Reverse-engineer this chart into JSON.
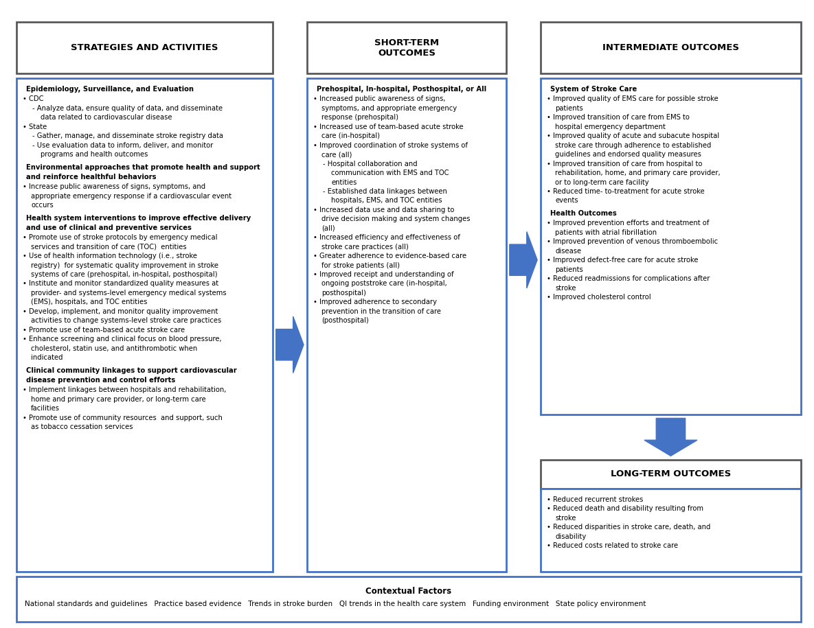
{
  "background_color": "#ffffff",
  "border_color_blue": "#4472c4",
  "border_color_dark": "#595959",
  "arrow_color": "#4472c4",
  "col1_header": "STRATEGIES AND ACTIVITIES",
  "col2_header": "SHORT-TERM\nOUTCOMES",
  "col3_header": "INTERMEDIATE OUTCOMES",
  "longterm_header": "LONG-TERM OUTCOMES",
  "contextual_header": "Contextual Factors",
  "contextual_items": "National standards and guidelines   Practice based evidence   Trends in stroke burden   QI trends in the health care system   Funding environment   State policy environment",
  "col1_sections": [
    {
      "heading": "Epidemiology, Surveillance, and Evaluation",
      "lines": [
        {
          "type": "bullet1",
          "text": "CDC"
        },
        {
          "type": "bullet2",
          "text": "Analyze data, ensure quality of data, and disseminate"
        },
        {
          "type": "cont2",
          "text": "data related to cardiovascular disease"
        },
        {
          "type": "bullet1",
          "text": "State"
        },
        {
          "type": "bullet2",
          "text": "Gather, manage, and disseminate stroke registry data"
        },
        {
          "type": "bullet2",
          "text": "Use evaluation data to inform, deliver, and monitor"
        },
        {
          "type": "cont2",
          "text": "programs and health outcomes"
        }
      ]
    },
    {
      "heading": "Environmental approaches that promote health and support\nand reinforce healthful behaviors",
      "lines": [
        {
          "type": "bullet1",
          "text": "Increase public awareness of signs, symptoms, and"
        },
        {
          "type": "cont1",
          "text": "appropriate emergency response if a cardiovascular event"
        },
        {
          "type": "cont1",
          "text": "occurs"
        }
      ]
    },
    {
      "heading": "Health system interventions to improve effective delivery\nand use of clinical and preventive services",
      "lines": [
        {
          "type": "bullet1",
          "text": "Promote use of stroke protocols by emergency medical"
        },
        {
          "type": "cont1",
          "text": "services and transition of care (TOC)  entities"
        },
        {
          "type": "bullet1",
          "text": "Use of health information technology (i.e., stroke"
        },
        {
          "type": "cont1",
          "text": "registry)  for systematic quality improvement in stroke"
        },
        {
          "type": "cont1",
          "text": "systems of care (prehospital, in-hospital, posthospital)"
        },
        {
          "type": "bullet1",
          "text": "Institute and monitor standardized quality measures at"
        },
        {
          "type": "cont1",
          "text": "provider- and systems-level emergency medical systems"
        },
        {
          "type": "cont1",
          "text": "(EMS), hospitals, and TOC entities"
        },
        {
          "type": "bullet1",
          "text": "Develop, implement, and monitor quality improvement"
        },
        {
          "type": "cont1",
          "text": "activities to change systems-level stroke care practices"
        },
        {
          "type": "bullet1",
          "text": "Promote use of team-based acute stroke care"
        },
        {
          "type": "bullet1",
          "text": "Enhance screening and clinical focus on blood pressure,"
        },
        {
          "type": "cont1",
          "text": "cholesterol, statin use, and antithrombotic when"
        },
        {
          "type": "cont1",
          "text": "indicated"
        }
      ]
    },
    {
      "heading": "Clinical community linkages to support cardiovascular\ndisease prevention and control efforts",
      "lines": [
        {
          "type": "bullet1",
          "text": "Implement linkages between hospitals and rehabilitation,"
        },
        {
          "type": "cont1",
          "text": "home and primary care provider, or long-term care"
        },
        {
          "type": "cont1",
          "text": "facilities"
        },
        {
          "type": "bullet1",
          "text": "Promote use of community resources  and support, such"
        },
        {
          "type": "cont1",
          "text": "as tobacco cessation services"
        }
      ]
    }
  ],
  "col2_heading": "Prehospital, In-hospital, Posthospital, or All",
  "col2_lines": [
    {
      "type": "bullet1",
      "text": "Increased public awareness of signs,"
    },
    {
      "type": "cont1",
      "text": "symptoms, and appropriate emergency"
    },
    {
      "type": "cont1",
      "text": "response (prehospital)"
    },
    {
      "type": "bullet1",
      "text": "Increased use of team-based acute stroke"
    },
    {
      "type": "cont1",
      "text": "care (in-hospital)"
    },
    {
      "type": "bullet1",
      "text": "Improved coordination of stroke systems of"
    },
    {
      "type": "cont1",
      "text": "care (all)"
    },
    {
      "type": "bullet2",
      "text": "Hospital collaboration and"
    },
    {
      "type": "cont2",
      "text": "communication with EMS and TOC"
    },
    {
      "type": "cont2",
      "text": "entities"
    },
    {
      "type": "bullet2",
      "text": "Established data linkages between"
    },
    {
      "type": "cont2",
      "text": "hospitals, EMS, and TOC entities"
    },
    {
      "type": "bullet1",
      "text": "Increased data use and data sharing to"
    },
    {
      "type": "cont1",
      "text": "drive decision making and system changes"
    },
    {
      "type": "cont1",
      "text": "(all)"
    },
    {
      "type": "bullet1",
      "text": "Increased efficiency and effectiveness of"
    },
    {
      "type": "cont1",
      "text": "stroke care practices (all)"
    },
    {
      "type": "bullet1",
      "text": "Greater adherence to evidence-based care"
    },
    {
      "type": "cont1",
      "text": "for stroke patients (all)"
    },
    {
      "type": "bullet1",
      "text": "Improved receipt and understanding of"
    },
    {
      "type": "cont1",
      "text": "ongoing poststroke care (in-hospital,"
    },
    {
      "type": "cont1",
      "text": "posthospital)"
    },
    {
      "type": "bullet1",
      "text": "Improved adherence to secondary"
    },
    {
      "type": "cont1",
      "text": "prevention in the transition of care"
    },
    {
      "type": "cont1",
      "text": "(posthospital)"
    }
  ],
  "col3_sections": [
    {
      "heading": "System of Stroke Care",
      "lines": [
        {
          "type": "bullet1",
          "text": "Improved quality of EMS care for possible stroke"
        },
        {
          "type": "cont1",
          "text": "patients"
        },
        {
          "type": "bullet1",
          "text": "Improved transition of care from EMS to"
        },
        {
          "type": "cont1",
          "text": "hospital emergency department"
        },
        {
          "type": "bullet1",
          "text": "Improved quality of acute and subacute hospital"
        },
        {
          "type": "cont1",
          "text": "stroke care through adherence to established"
        },
        {
          "type": "cont1",
          "text": "guidelines and endorsed quality measures"
        },
        {
          "type": "bullet1",
          "text": "Improved transition of care from hospital to"
        },
        {
          "type": "cont1",
          "text": "rehabilitation, home, and primary care provider,"
        },
        {
          "type": "cont1",
          "text": "or to long-term care facility"
        },
        {
          "type": "bullet1",
          "text": "Reduced time- to-treatment for acute stroke"
        },
        {
          "type": "cont1",
          "text": "events"
        }
      ]
    },
    {
      "heading": "Health Outcomes",
      "lines": [
        {
          "type": "bullet1",
          "text": "Improved prevention efforts and treatment of"
        },
        {
          "type": "cont1",
          "text": "patients with atrial fibrillation"
        },
        {
          "type": "bullet1",
          "text": "Improved prevention of venous thromboembolic"
        },
        {
          "type": "cont1",
          "text": "disease"
        },
        {
          "type": "bullet1",
          "text": "Improved defect-free care for acute stroke"
        },
        {
          "type": "cont1",
          "text": "patients"
        },
        {
          "type": "bullet1",
          "text": "Reduced readmissions for complications after"
        },
        {
          "type": "cont1",
          "text": "stroke"
        },
        {
          "type": "bullet1",
          "text": "Improved cholesterol control"
        }
      ]
    }
  ],
  "longterm_lines": [
    {
      "type": "bullet1",
      "text": "Reduced recurrent strokes"
    },
    {
      "type": "bullet1",
      "text": "Reduced death and disability resulting from"
    },
    {
      "type": "cont1",
      "text": "stroke"
    },
    {
      "type": "bullet1",
      "text": "Reduced disparities in stroke care, death, and"
    },
    {
      "type": "cont1",
      "text": "disability"
    },
    {
      "type": "bullet1",
      "text": "Reduced costs related to stroke care"
    }
  ]
}
